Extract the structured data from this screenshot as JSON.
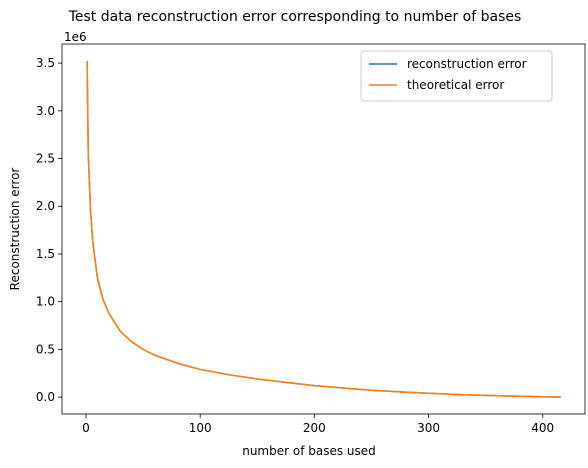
{
  "chart_data": {
    "type": "line",
    "title": "Test data reconstruction error corresponding to number of bases",
    "xlabel": "number of bases used",
    "ylabel": "Reconstruction error",
    "offset_text": "1e6",
    "xlim": [
      -21,
      437
    ],
    "ylim": [
      -0.177,
      3.7
    ],
    "x_ticks": [
      0,
      100,
      200,
      300,
      400
    ],
    "x_tick_labels": [
      "0",
      "100",
      "200",
      "300",
      "400"
    ],
    "y_ticks": [
      0.0,
      0.5,
      1.0,
      1.5,
      2.0,
      2.5,
      3.0,
      3.5
    ],
    "y_tick_labels": [
      "0.0",
      "0.5",
      "1.0",
      "1.5",
      "2.0",
      "2.5",
      "3.0",
      "3.5"
    ],
    "y_unit": "1e6",
    "grid": false,
    "legend": {
      "position": "top-right",
      "entries": [
        "reconstruction error",
        "theoretical error"
      ]
    },
    "series": [
      {
        "name": "reconstruction error",
        "color": "#1f77b4",
        "x": [
          1,
          2,
          4,
          6,
          10,
          15,
          20,
          30,
          40,
          50,
          60,
          80,
          100,
          125,
          150,
          175,
          200,
          225,
          250,
          275,
          300,
          325,
          350,
          375,
          400,
          416
        ],
        "y": [
          3.52,
          2.55,
          1.95,
          1.62,
          1.25,
          1.02,
          0.88,
          0.69,
          0.58,
          0.5,
          0.44,
          0.355,
          0.29,
          0.235,
          0.19,
          0.155,
          0.12,
          0.095,
          0.072,
          0.055,
          0.04,
          0.028,
          0.018,
          0.01,
          0.004,
          0.0
        ]
      },
      {
        "name": "theoretical error",
        "color": "#ff7f0e",
        "x": [
          1,
          2,
          4,
          6,
          10,
          15,
          20,
          30,
          40,
          50,
          60,
          80,
          100,
          125,
          150,
          175,
          200,
          225,
          250,
          275,
          300,
          325,
          350,
          375,
          400,
          416
        ],
        "y": [
          3.52,
          2.55,
          1.95,
          1.62,
          1.25,
          1.02,
          0.88,
          0.69,
          0.58,
          0.5,
          0.44,
          0.355,
          0.29,
          0.235,
          0.19,
          0.155,
          0.12,
          0.095,
          0.072,
          0.055,
          0.04,
          0.028,
          0.018,
          0.01,
          0.004,
          0.0
        ]
      }
    ]
  }
}
